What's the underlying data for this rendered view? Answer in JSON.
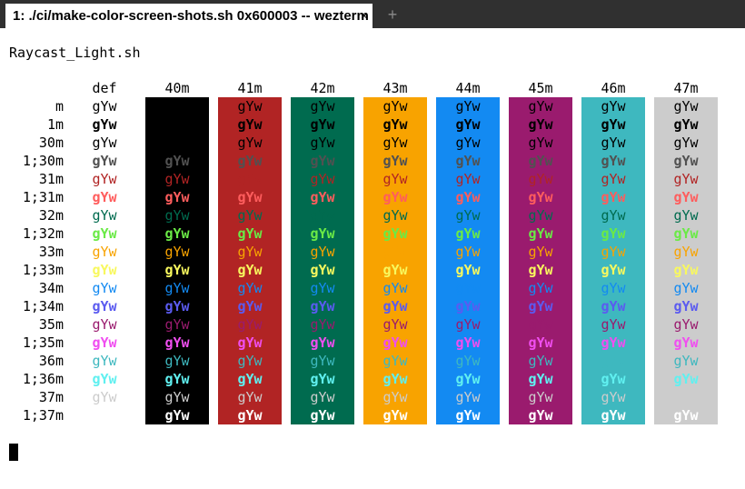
{
  "window": {
    "tab_title": "1: ./ci/make-color-screen-shots.sh 0x600003 -- wezterm",
    "close_glyph": "×",
    "new_tab_glyph": "+"
  },
  "script_name": "Raycast_Light.sh",
  "sample_text": "gYw",
  "columns": [
    {
      "label": "def",
      "bg": null
    },
    {
      "label": "40m",
      "bg": "#000000"
    },
    {
      "label": "41m",
      "bg": "#b12424"
    },
    {
      "label": "42m",
      "bg": "#006b4f"
    },
    {
      "label": "43m",
      "bg": "#f8a300"
    },
    {
      "label": "44m",
      "bg": "#138af2"
    },
    {
      "label": "45m",
      "bg": "#9a1b6e"
    },
    {
      "label": "46m",
      "bg": "#3eb8bf"
    },
    {
      "label": "47m",
      "bg": "#cccccc"
    }
  ],
  "rows": [
    {
      "label": "m",
      "fg": "#000000",
      "bold": false
    },
    {
      "label": "1m",
      "fg": "#000000",
      "bold": true
    },
    {
      "label": "30m",
      "fg": "#000000",
      "bold": false
    },
    {
      "label": "1;30m",
      "fg": "#515151",
      "bold": true
    },
    {
      "label": "31m",
      "fg": "#b12424",
      "bold": false
    },
    {
      "label": "1;31m",
      "fg": "#ff5d5d",
      "bold": true
    },
    {
      "label": "32m",
      "fg": "#006b4f",
      "bold": false
    },
    {
      "label": "1;32m",
      "fg": "#6aea46",
      "bold": true
    },
    {
      "label": "33m",
      "fg": "#f8a300",
      "bold": false
    },
    {
      "label": "1;33m",
      "fg": "#f8f85e",
      "bold": true
    },
    {
      "label": "34m",
      "fg": "#138af2",
      "bold": false
    },
    {
      "label": "1;34m",
      "fg": "#5b5bf0",
      "bold": true
    },
    {
      "label": "35m",
      "fg": "#9a1b6e",
      "bold": false
    },
    {
      "label": "1;35m",
      "fg": "#f04ef0",
      "bold": true
    },
    {
      "label": "36m",
      "fg": "#3eb8bf",
      "bold": false
    },
    {
      "label": "1;36m",
      "fg": "#60f0f0",
      "bold": true
    },
    {
      "label": "37m",
      "fg": "#cccccc",
      "bold": false
    },
    {
      "label": "1;37m",
      "fg": "#ffffff",
      "bold": true
    }
  ]
}
